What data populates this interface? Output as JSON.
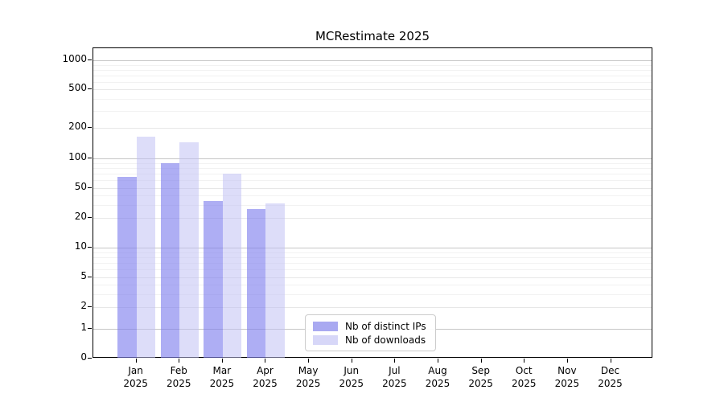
{
  "chart_data": {
    "type": "bar",
    "title": "MCRestimate 2025",
    "categories": [
      "Jan",
      "Feb",
      "Mar",
      "Apr",
      "May",
      "Jun",
      "Jul",
      "Aug",
      "Sep",
      "Oct",
      "Nov",
      "Dec"
    ],
    "category_year": "2025",
    "series": [
      {
        "name": "Nb of distinct IPs",
        "color": "#a9a9f1",
        "values": [
          65,
          90,
          34,
          26,
          0,
          0,
          0,
          0,
          0,
          0,
          0,
          0
        ]
      },
      {
        "name": "Nb of downloads",
        "color": "#d7d7f8",
        "values": [
          165,
          145,
          70,
          31,
          0,
          0,
          0,
          0,
          0,
          0,
          0,
          0
        ]
      }
    ],
    "y_ticks": [
      0,
      1,
      2,
      5,
      10,
      20,
      50,
      100,
      200,
      500,
      1000
    ],
    "y_scale": "symlog",
    "ylim": [
      0,
      1000
    ],
    "grid": true,
    "legend_position": "lower center",
    "colors": {
      "bar_distinct_ips": "#a9a9f1",
      "bar_downloads": "#d7d7f8",
      "grid_decade": "#c6c6c6",
      "grid_labeled": "#e7e7e7",
      "grid_minor": "#f2f2f2",
      "spine": "#000000"
    }
  }
}
